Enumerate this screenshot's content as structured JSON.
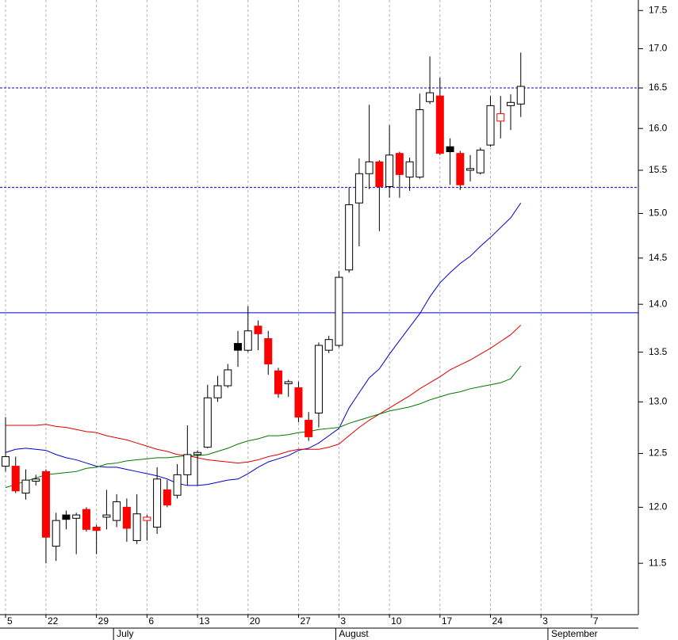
{
  "chart_data": {
    "type": "candlestick",
    "log": true,
    "ylim": [
      11.06,
      17.64
    ],
    "yticks": [
      11.5,
      {
        "value": 12,
        "label": "12.0"
      },
      12.5,
      {
        "value": 13,
        "label": "13.0"
      },
      13.5,
      {
        "value": 14,
        "label": "14.0"
      },
      14.5,
      {
        "value": 15,
        "label": "15.0"
      },
      15.5,
      {
        "value": 16,
        "label": "16.0"
      },
      16.5,
      {
        "value": 17,
        "label": "17.0"
      },
      17.5
    ],
    "grid": true,
    "categories": [
      "5",
      null,
      null,
      null,
      "22",
      null,
      null,
      null,
      null,
      "29",
      null,
      null,
      null,
      null,
      "6",
      null,
      null,
      null,
      null,
      "13",
      null,
      null,
      null,
      null,
      "20",
      null,
      null,
      null,
      null,
      "27",
      null,
      null,
      null,
      "3",
      null,
      null,
      null,
      null,
      "10",
      null,
      null,
      null,
      null,
      "17",
      null,
      null,
      null,
      null,
      "24",
      null,
      null,
      null,
      null,
      "3",
      null,
      null,
      null,
      null,
      "7",
      null,
      null,
      null,
      null
    ],
    "months": [
      null,
      null,
      null,
      null,
      null,
      null,
      null,
      null,
      null,
      null,
      null,
      "July",
      null,
      null,
      null,
      null,
      null,
      null,
      null,
      null,
      null,
      null,
      null,
      null,
      null,
      null,
      null,
      null,
      null,
      null,
      null,
      null,
      null,
      "August",
      null,
      null,
      null,
      null,
      null,
      null,
      null,
      null,
      null,
      null,
      null,
      null,
      null,
      null,
      null,
      null,
      null,
      null,
      null,
      null,
      "September",
      null,
      null,
      null,
      null,
      null,
      null,
      null,
      null
    ],
    "open": [
      12.38,
      12.38,
      12.13,
      12.24,
      12.33,
      11.65,
      11.93,
      11.9,
      11.98,
      11.82,
      11.91,
      11.88,
      12.0,
      11.7,
      11.88,
      11.82,
      12.16,
      12.11,
      12.3,
      12.49,
      12.56,
      13.04,
      13.16,
      13.59,
      13.52,
      13.77,
      13.64,
      13.31,
      13.18,
      13.14,
      12.82,
      12.89,
      13.52,
      13.57,
      14.37,
      15.12,
      15.46,
      15.6,
      15.31,
      15.7,
      15.42,
      15.42,
      16.33,
      16.4,
      15.78,
      15.7,
      15.5,
      15.47,
      15.8,
      16.09,
      16.28,
      16.3,
      null,
      null,
      null,
      null,
      null,
      null,
      null,
      null,
      null,
      null,
      null
    ],
    "high": [
      12.85,
      12.47,
      12.35,
      12.3,
      12.35,
      11.95,
      11.97,
      11.95,
      12.0,
      11.84,
      12.16,
      12.12,
      12.08,
      12.12,
      11.93,
      12.37,
      12.25,
      12.4,
      12.77,
      12.53,
      13.17,
      13.26,
      13.38,
      13.72,
      13.98,
      13.83,
      13.72,
      13.34,
      13.22,
      13.2,
      12.9,
      13.6,
      13.67,
      14.36,
      15.3,
      15.64,
      16.29,
      15.62,
      16.04,
      15.72,
      15.65,
      16.43,
      16.9,
      16.63,
      15.88,
      15.73,
      15.68,
      15.77,
      16.4,
      16.4,
      16.42,
      16.95,
      null,
      null,
      null,
      null,
      null,
      null,
      null,
      null,
      null,
      null,
      null
    ],
    "low": [
      12.33,
      12.13,
      12.07,
      12.2,
      11.5,
      11.52,
      11.8,
      11.58,
      11.78,
      11.58,
      11.8,
      11.82,
      11.69,
      11.67,
      11.7,
      11.76,
      12.0,
      12.08,
      12.2,
      12.2,
      12.55,
      13.0,
      13.14,
      13.35,
      13.5,
      13.52,
      13.27,
      13.04,
      13.05,
      12.8,
      12.62,
      12.75,
      13.49,
      13.55,
      14.34,
      14.63,
      15.28,
      14.8,
      15.18,
      15.18,
      15.26,
      15.4,
      16.3,
      15.68,
      15.33,
      15.27,
      15.37,
      15.45,
      15.78,
      15.88,
      15.98,
      16.14,
      null,
      null,
      null,
      null,
      null,
      null,
      null,
      null,
      null,
      null,
      null
    ],
    "close": [
      12.47,
      12.15,
      12.25,
      12.26,
      11.73,
      11.88,
      11.89,
      11.93,
      11.8,
      11.79,
      11.93,
      12.05,
      11.81,
      11.94,
      11.91,
      12.26,
      12.02,
      12.3,
      12.49,
      12.51,
      13.04,
      13.16,
      13.32,
      13.52,
      13.72,
      13.69,
      13.38,
      13.08,
      13.2,
      12.85,
      12.66,
      13.57,
      13.63,
      14.29,
      15.1,
      15.46,
      15.6,
      15.31,
      15.68,
      15.45,
      15.6,
      16.23,
      16.44,
      15.7,
      15.72,
      15.33,
      15.52,
      15.74,
      16.28,
      16.18,
      16.32,
      16.52,
      null,
      null,
      null,
      null,
      null,
      null,
      null,
      null,
      null,
      null,
      null
    ],
    "candle_colors": {
      "up": "#ffffff",
      "down": "#ff0000",
      "down_above_previous": "#000000",
      "up_below_previous": "#ff0000"
    },
    "moving_averages": [
      {
        "color": "#0000cc",
        "values": [
          12.51,
          12.54,
          12.55,
          12.54,
          12.53,
          12.49,
          12.46,
          12.44,
          12.41,
          12.38,
          12.37,
          12.37,
          12.35,
          12.33,
          12.31,
          12.29,
          12.26,
          12.22,
          12.2,
          12.2,
          12.21,
          12.23,
          12.25,
          12.26,
          12.31,
          12.37,
          12.42,
          12.45,
          12.48,
          12.53,
          12.55,
          12.6,
          12.67,
          12.74,
          12.94,
          13.09,
          13.24,
          13.33,
          13.48,
          13.62,
          13.76,
          13.9,
          14.08,
          14.23,
          14.34,
          14.44,
          14.52,
          14.63,
          14.73,
          14.84,
          14.95,
          15.12,
          null,
          null,
          null,
          null,
          null,
          null,
          null,
          null,
          null,
          null,
          null
        ]
      },
      {
        "color": "#dd0000",
        "values": [
          12.77,
          12.77,
          12.77,
          12.77,
          12.78,
          12.76,
          12.75,
          12.73,
          12.71,
          12.7,
          12.67,
          12.65,
          12.63,
          12.6,
          12.57,
          12.54,
          12.52,
          12.49,
          12.48,
          12.46,
          12.44,
          12.43,
          12.42,
          12.41,
          12.42,
          12.44,
          12.47,
          12.49,
          12.52,
          12.54,
          12.54,
          12.54,
          12.56,
          12.59,
          12.67,
          12.75,
          12.82,
          12.88,
          12.94,
          13.0,
          13.06,
          13.13,
          13.19,
          13.25,
          13.32,
          13.37,
          13.42,
          13.48,
          13.54,
          13.61,
          13.68,
          13.78,
          null,
          null,
          null,
          null,
          null,
          null,
          null,
          null,
          null,
          null,
          null
        ]
      },
      {
        "color": "#007700",
        "values": [
          12.18,
          12.21,
          12.24,
          12.27,
          12.3,
          12.31,
          12.32,
          12.33,
          12.36,
          12.37,
          12.4,
          12.41,
          12.43,
          12.44,
          12.45,
          12.46,
          12.46,
          12.47,
          12.48,
          12.48,
          12.49,
          12.52,
          12.55,
          12.59,
          12.62,
          12.64,
          12.67,
          12.67,
          12.68,
          12.7,
          12.71,
          12.73,
          12.74,
          12.75,
          12.79,
          12.82,
          12.85,
          12.88,
          12.91,
          12.93,
          12.95,
          12.98,
          13.02,
          13.05,
          13.08,
          13.1,
          13.13,
          13.15,
          13.17,
          13.19,
          13.23,
          13.36,
          null,
          null,
          null,
          null,
          null,
          null,
          null,
          null,
          null,
          null,
          null
        ]
      }
    ],
    "hlines": [
      {
        "value": 16.5,
        "color": "#0000cc",
        "style": "dotted"
      },
      {
        "value": 15.3,
        "color": "#0000cc",
        "style": "dotted"
      },
      {
        "value": 13.91,
        "color": "#0000cc",
        "style": "solid"
      }
    ]
  }
}
